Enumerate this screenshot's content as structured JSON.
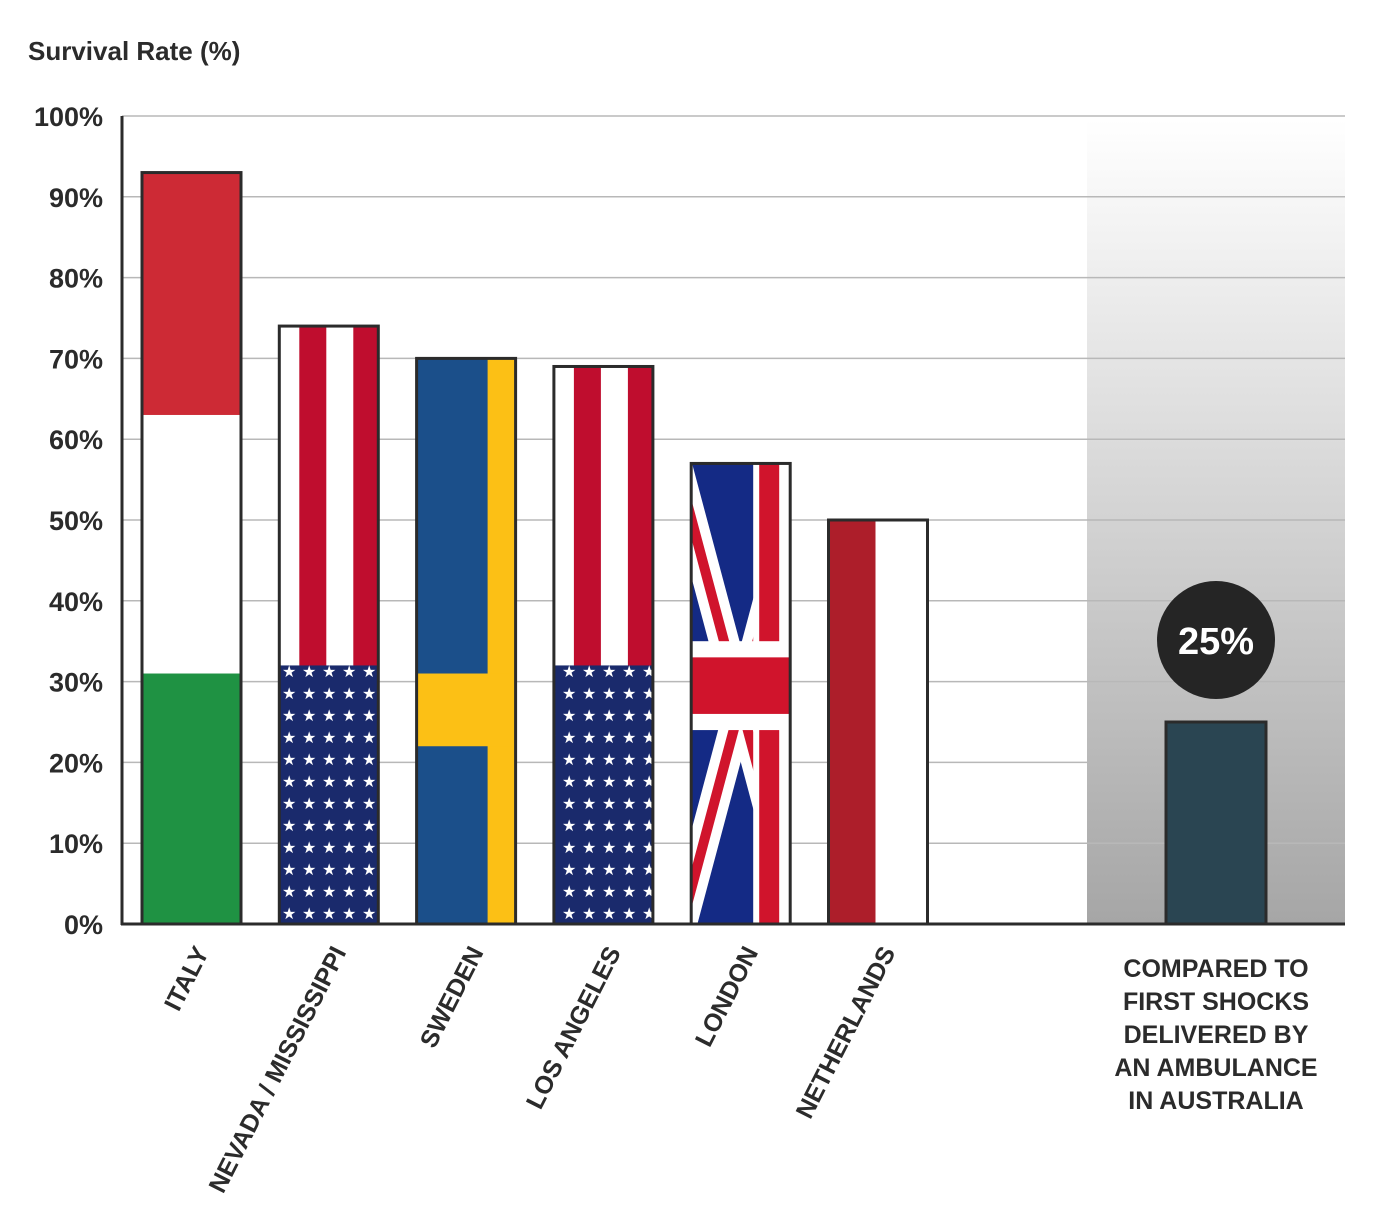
{
  "chart_data": {
    "type": "bar",
    "title": "",
    "ylabel": "Survival Rate (%)",
    "xlabel": "",
    "ylim": [
      0,
      100
    ],
    "yticks": [
      "0%",
      "10%",
      "20%",
      "30%",
      "40%",
      "50%",
      "60%",
      "70%",
      "80%",
      "90%",
      "100%"
    ],
    "grid": true,
    "categories": [
      "ITALY",
      "NEVADA / MISSISSIPPI",
      "SWEDEN",
      "LOS ANGELES",
      "LONDON",
      "NETHERLANDS"
    ],
    "values": [
      93,
      74,
      70,
      69,
      57,
      50
    ],
    "flag_styles": [
      "italy",
      "usa",
      "sweden",
      "usa",
      "uk",
      "netherlands"
    ],
    "comparison": {
      "label_lines": [
        "COMPARED TO",
        "FIRST SHOCKS",
        "DELIVERED BY",
        "AN AMBULANCE",
        "IN AUSTRALIA"
      ],
      "value": 25,
      "value_label": "25%",
      "color": "#2a4552"
    }
  },
  "colors": {
    "italy_red": "#cd2a35",
    "italy_green": "#1f9243",
    "usa_red": "#bf0d2e",
    "usa_blue": "#1a2a6c",
    "sweden_blue": "#1b4f8a",
    "sweden_yellow": "#fcc015",
    "uk_blue": "#142a85",
    "uk_red": "#d0142c",
    "nl_red": "#ad1e2a",
    "bubble": "#252525"
  }
}
